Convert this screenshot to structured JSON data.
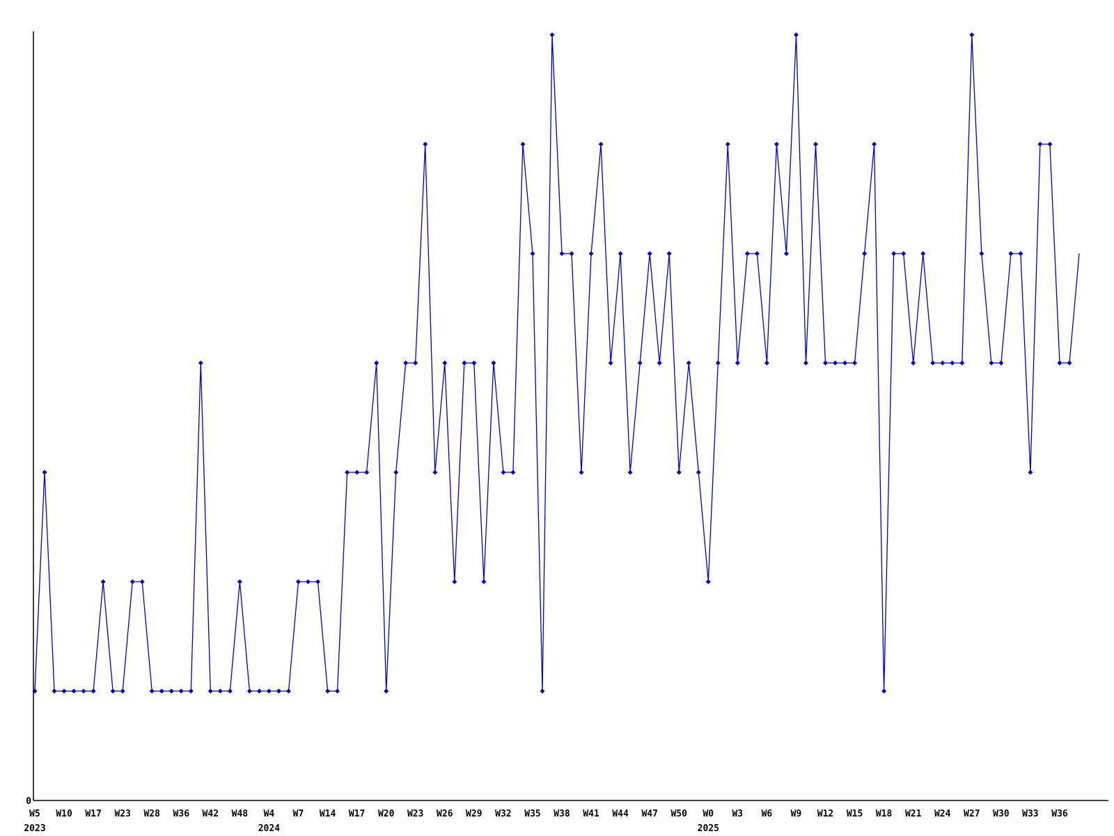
{
  "chart_data": {
    "type": "line",
    "title": "",
    "xlabel": "",
    "ylabel": "",
    "legend": "none",
    "grid": false,
    "line_color": "#0000cd",
    "axis_color": "#000000",
    "background_color": "#ffffff",
    "marker": "diamond",
    "last_point_has_marker": false,
    "y_axis": {
      "zero_label": "0",
      "min": 0,
      "max_plotted_value": 7
    },
    "x_axis": {
      "tick_every_n_points": 3,
      "tick_labels": [
        "W5",
        "W10",
        "W17",
        "W23",
        "W28",
        "W36",
        "W42",
        "W48",
        "W4",
        "W7",
        "W14",
        "W17",
        "W20",
        "W23",
        "W26",
        "W29",
        "W32",
        "W35",
        "W38",
        "W41",
        "W44",
        "W47",
        "W50",
        "W0",
        "W3",
        "W6",
        "W9",
        "W12",
        "W15",
        "W18",
        "W21",
        "W24",
        "W27",
        "W30",
        "W33",
        "W36"
      ],
      "year_labels": [
        {
          "text": "2023",
          "tick_index": 0
        },
        {
          "text": "2024",
          "tick_index": 8
        },
        {
          "text": "2025",
          "tick_index": 23
        }
      ]
    },
    "values": [
      1,
      3,
      1,
      1,
      1,
      1,
      1,
      2,
      1,
      1,
      2,
      2,
      1,
      1,
      1,
      1,
      1,
      4,
      1,
      1,
      1,
      2,
      1,
      1,
      1,
      1,
      1,
      2,
      2,
      2,
      1,
      1,
      3,
      3,
      3,
      4,
      1,
      3,
      4,
      4,
      6,
      3,
      4,
      2,
      4,
      4,
      2,
      4,
      3,
      3,
      6,
      5,
      1,
      7,
      5,
      5,
      3,
      5,
      6,
      4,
      5,
      3,
      4,
      5,
      4,
      5,
      3,
      4,
      3,
      2,
      4,
      6,
      4,
      5,
      5,
      4,
      6,
      5,
      7,
      4,
      6,
      4,
      4,
      4,
      4,
      5,
      6,
      1,
      5,
      5,
      4,
      5,
      4,
      4,
      4,
      4,
      7,
      5,
      4,
      4,
      5,
      5,
      3,
      6,
      6,
      4,
      4,
      5
    ]
  }
}
